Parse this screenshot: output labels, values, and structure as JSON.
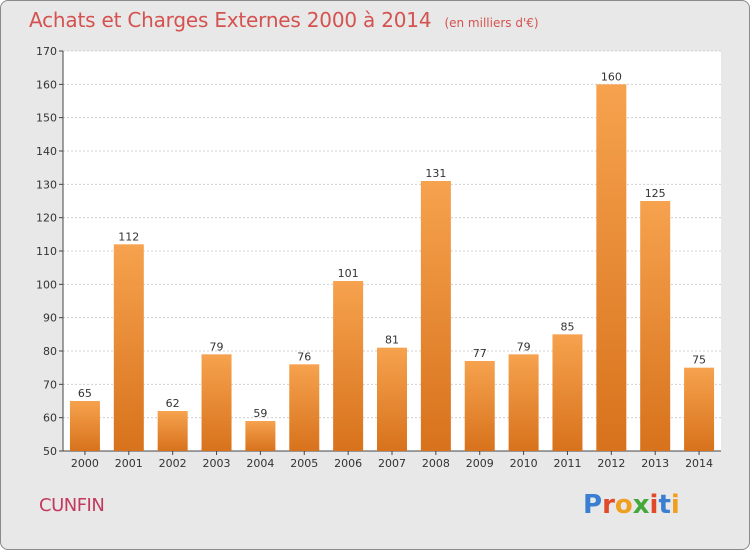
{
  "title": "Achats et Charges Externes 2000 à 2014",
  "subtitle": "(en milliers d'€)",
  "commune": "CUNFIN",
  "logo_text": "Proxiti",
  "colors": {
    "bar_light": "#f6a24e",
    "bar_dark": "#d8721c",
    "title": "#d4524f",
    "commune": "#c43a5c",
    "logo": [
      "#3a7fd1",
      "#e04a2a",
      "#f0a020",
      "#45a83a",
      "#e04a2a",
      "#3a7fd1",
      "#f0a020"
    ]
  },
  "chart_data": {
    "type": "bar",
    "title": "Achats et Charges Externes 2000 à 2014",
    "subtitle": "(en milliers d'€)",
    "xlabel": "",
    "ylabel": "",
    "categories": [
      "2000",
      "2001",
      "2002",
      "2003",
      "2004",
      "2005",
      "2006",
      "2007",
      "2008",
      "2009",
      "2010",
      "2011",
      "2012",
      "2013",
      "2014"
    ],
    "values": [
      65,
      112,
      62,
      79,
      59,
      76,
      101,
      81,
      131,
      77,
      79,
      85,
      160,
      125,
      75
    ],
    "ylim": [
      50,
      170
    ],
    "yticks": [
      50,
      60,
      70,
      80,
      90,
      100,
      110,
      120,
      130,
      140,
      150,
      160,
      170
    ],
    "grid": true,
    "data_labels": true
  }
}
